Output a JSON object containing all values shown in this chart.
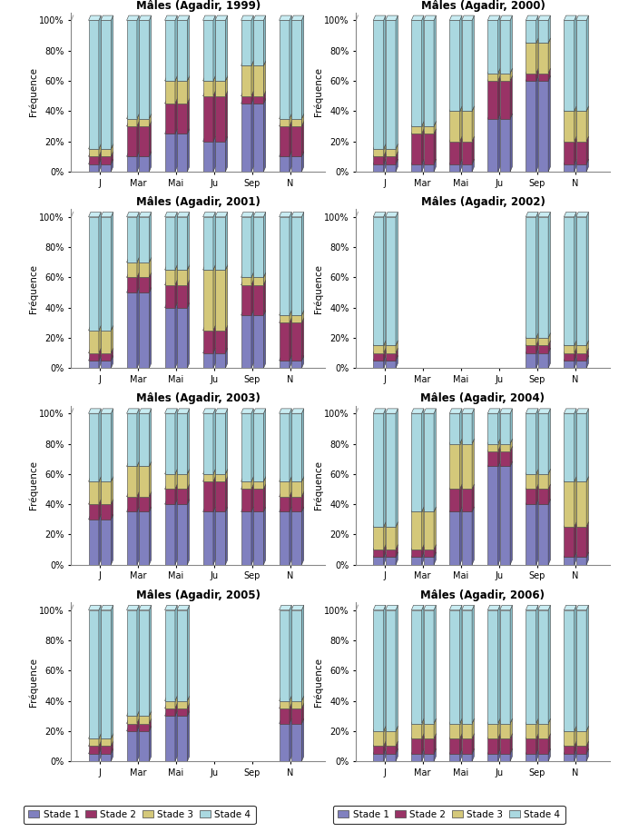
{
  "charts": [
    {
      "title": "Mâles (Agadir, 1999)",
      "months": [
        "J",
        "Mar",
        "Mai",
        "Ju",
        "Sep",
        "N"
      ],
      "stade1": [
        5,
        10,
        25,
        20,
        45,
        10
      ],
      "stade2": [
        5,
        20,
        20,
        30,
        5,
        20
      ],
      "stade3": [
        5,
        5,
        15,
        10,
        20,
        5
      ],
      "stade4": [
        85,
        65,
        40,
        40,
        30,
        65
      ]
    },
    {
      "title": "Mâles (Agadir, 2000)",
      "months": [
        "J",
        "Mar",
        "Mai",
        "Ju",
        "Sep",
        "N"
      ],
      "stade1": [
        5,
        5,
        5,
        35,
        60,
        5
      ],
      "stade2": [
        5,
        20,
        15,
        25,
        5,
        15
      ],
      "stade3": [
        5,
        5,
        20,
        5,
        20,
        20
      ],
      "stade4": [
        85,
        70,
        60,
        35,
        15,
        60
      ]
    },
    {
      "title": "Mâles (Agadir, 2001)",
      "months": [
        "J",
        "Mar",
        "Mai",
        "Ju",
        "Sep",
        "N"
      ],
      "stade1": [
        5,
        50,
        40,
        10,
        35,
        5
      ],
      "stade2": [
        5,
        10,
        15,
        15,
        20,
        25
      ],
      "stade3": [
        15,
        10,
        10,
        40,
        5,
        5
      ],
      "stade4": [
        75,
        30,
        35,
        35,
        40,
        65
      ]
    },
    {
      "title": "Mâles (Agadir, 2002)",
      "months": [
        "J",
        "Mar",
        "Mai",
        "Ju",
        "Sep",
        "N"
      ],
      "stade1": [
        5,
        0,
        0,
        0,
        10,
        5
      ],
      "stade2": [
        5,
        0,
        0,
        0,
        5,
        5
      ],
      "stade3": [
        5,
        0,
        0,
        0,
        5,
        5
      ],
      "stade4": [
        85,
        0,
        0,
        0,
        80,
        85
      ],
      "empty_months": [
        1,
        2,
        3
      ]
    },
    {
      "title": "Mâles (Agadir, 2003)",
      "months": [
        "J",
        "Mar",
        "Mai",
        "Ju",
        "Sep",
        "N"
      ],
      "stade1": [
        30,
        35,
        40,
        35,
        35,
        35
      ],
      "stade2": [
        10,
        10,
        10,
        20,
        15,
        10
      ],
      "stade3": [
        15,
        20,
        10,
        5,
        5,
        10
      ],
      "stade4": [
        45,
        35,
        40,
        40,
        45,
        45
      ]
    },
    {
      "title": "Mâles (Agadir, 2004)",
      "months": [
        "J",
        "Mar",
        "Mai",
        "Ju",
        "Sep",
        "N"
      ],
      "stade1": [
        5,
        5,
        35,
        65,
        40,
        5
      ],
      "stade2": [
        5,
        5,
        15,
        10,
        10,
        20
      ],
      "stade3": [
        15,
        25,
        30,
        5,
        10,
        30
      ],
      "stade4": [
        75,
        65,
        20,
        20,
        40,
        45
      ],
      "empty_months": []
    },
    {
      "title": "Mâles (Agadir, 2005)",
      "months": [
        "J",
        "Mar",
        "Mai",
        "Ju",
        "Sep",
        "N"
      ],
      "stade1": [
        5,
        20,
        30,
        0,
        0,
        25
      ],
      "stade2": [
        5,
        5,
        5,
        0,
        0,
        10
      ],
      "stade3": [
        5,
        5,
        5,
        0,
        0,
        5
      ],
      "stade4": [
        85,
        70,
        60,
        0,
        0,
        60
      ],
      "empty_months": [
        3,
        4
      ]
    },
    {
      "title": "Mâles (Agadir, 2006)",
      "months": [
        "J",
        "Mar",
        "Mai",
        "Ju",
        "Sep",
        "N"
      ],
      "stade1": [
        5,
        5,
        5,
        5,
        5,
        5
      ],
      "stade2": [
        5,
        10,
        10,
        10,
        10,
        5
      ],
      "stade3": [
        10,
        10,
        10,
        10,
        10,
        10
      ],
      "stade4": [
        80,
        75,
        75,
        75,
        75,
        80
      ]
    }
  ],
  "colors": {
    "stade1_front": "#8080bf",
    "stade1_side": "#6060a0",
    "stade1_top": "#a0a0d0",
    "stade2_front": "#993366",
    "stade2_side": "#7a2852",
    "stade2_top": "#b35585",
    "stade3_front": "#d4c87a",
    "stade3_side": "#b8ad60",
    "stade3_top": "#e8dc98",
    "stade4_front": "#aad8e0",
    "stade4_side": "#88bec8",
    "stade4_top": "#c8ecf2"
  },
  "ylabel": "Fréquence",
  "yticks": [
    0,
    20,
    40,
    60,
    80,
    100
  ],
  "ytick_labels": [
    "0%",
    "20%",
    "40%",
    "60%",
    "80%",
    "100%"
  ]
}
